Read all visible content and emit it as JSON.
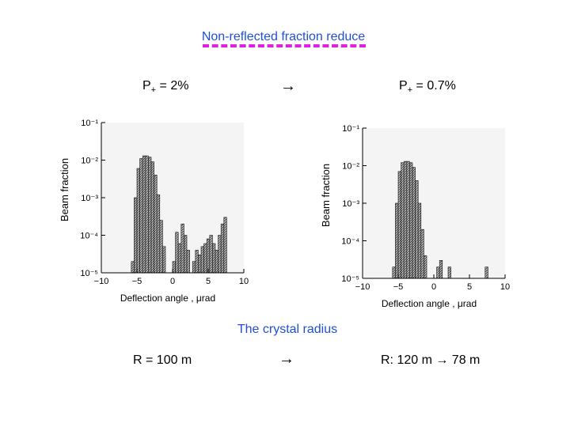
{
  "slide": {
    "title": "Non-reflected fraction reduce",
    "left_label_prefix": "P",
    "left_label_sub": "+",
    "left_label_value": " = 2%",
    "arrow": "→",
    "right_label_prefix": "P",
    "right_label_sub": "+",
    "right_label_value": " = 0.7%",
    "subtitle": "The crystal radius",
    "bottom_left": "R = 100 m",
    "bottom_arrow": "→",
    "bottom_right": "R: 120 m → 78 m"
  },
  "colors": {
    "title": "#1f4fd6",
    "dash": "#e020e0",
    "fill": "#888888"
  },
  "chart_data": [
    {
      "type": "area",
      "xlabel": "Deflection angle , μrad",
      "ylabel": "Beam fraction",
      "x_ticks": [
        "−10",
        "−5",
        "0",
        "5",
        "10"
      ],
      "y_ticks": [
        "10⁻⁵",
        "10⁻⁴",
        "10⁻³",
        "10⁻²",
        "10⁻¹"
      ],
      "xlim": [
        -10,
        10
      ],
      "ylim_log10": [
        -5,
        -1
      ],
      "log_y": true,
      "x": [
        -5.6,
        -5.2,
        -4.8,
        -4.4,
        -4.0,
        -3.6,
        -3.2,
        -2.8,
        -2.4,
        -2.0,
        -1.6,
        -1.2,
        -1.0,
        -0.6,
        -0.2,
        0.2,
        0.6,
        1.0,
        1.4,
        1.8,
        2.2,
        2.6,
        3.0,
        3.4,
        3.8,
        4.2,
        4.6,
        5.0,
        5.4,
        5.8,
        6.2,
        6.6,
        7.0,
        7.4,
        7.8
      ],
      "values": [
        2e-05,
        0.001,
        0.006,
        0.011,
        0.013,
        0.013,
        0.012,
        0.009,
        0.004,
        0.0012,
        0.00025,
        5e-05,
        1e-05,
        1e-05,
        1e-05,
        2e-05,
        0.00012,
        6e-05,
        0.0002,
        0.0001,
        4e-05,
        1e-05,
        2e-05,
        4e-05,
        3e-05,
        5e-05,
        6e-05,
        8e-05,
        0.0001,
        6e-05,
        4e-05,
        0.0001,
        0.0002,
        0.0003,
        1e-05
      ]
    },
    {
      "type": "area",
      "xlabel": "Deflection angle , μrad",
      "ylabel": "Beam fraction",
      "x_ticks": [
        "−10",
        "−5",
        "0",
        "5",
        "10"
      ],
      "y_ticks": [
        "10⁻⁵",
        "10⁻⁴",
        "10⁻³",
        "10⁻²",
        "10⁻¹"
      ],
      "xlim": [
        -10,
        10
      ],
      "ylim_log10": [
        -5,
        -1
      ],
      "log_y": true,
      "x": [
        -5.6,
        -5.2,
        -4.8,
        -4.4,
        -4.0,
        -3.6,
        -3.2,
        -2.8,
        -2.4,
        -2.0,
        -1.6,
        -1.2,
        -1.0,
        -0.6,
        -0.2,
        0.2,
        0.6,
        1.0,
        1.4,
        1.8,
        2.2,
        2.6,
        3.0,
        3.4,
        3.8,
        4.2,
        4.6,
        5.0,
        5.4,
        5.8,
        6.2,
        6.6,
        7.0,
        7.4,
        7.8
      ],
      "values": [
        2e-05,
        0.001,
        0.007,
        0.012,
        0.013,
        0.013,
        0.012,
        0.009,
        0.004,
        0.001,
        0.0002,
        4e-05,
        1e-05,
        1e-05,
        1e-05,
        1e-05,
        2e-05,
        3e-05,
        1e-05,
        1e-05,
        2e-05,
        1e-05,
        1e-05,
        1e-05,
        1e-05,
        1e-05,
        1e-05,
        1e-05,
        1e-05,
        1e-05,
        1e-05,
        1e-05,
        1e-05,
        2e-05,
        1e-05
      ]
    }
  ]
}
